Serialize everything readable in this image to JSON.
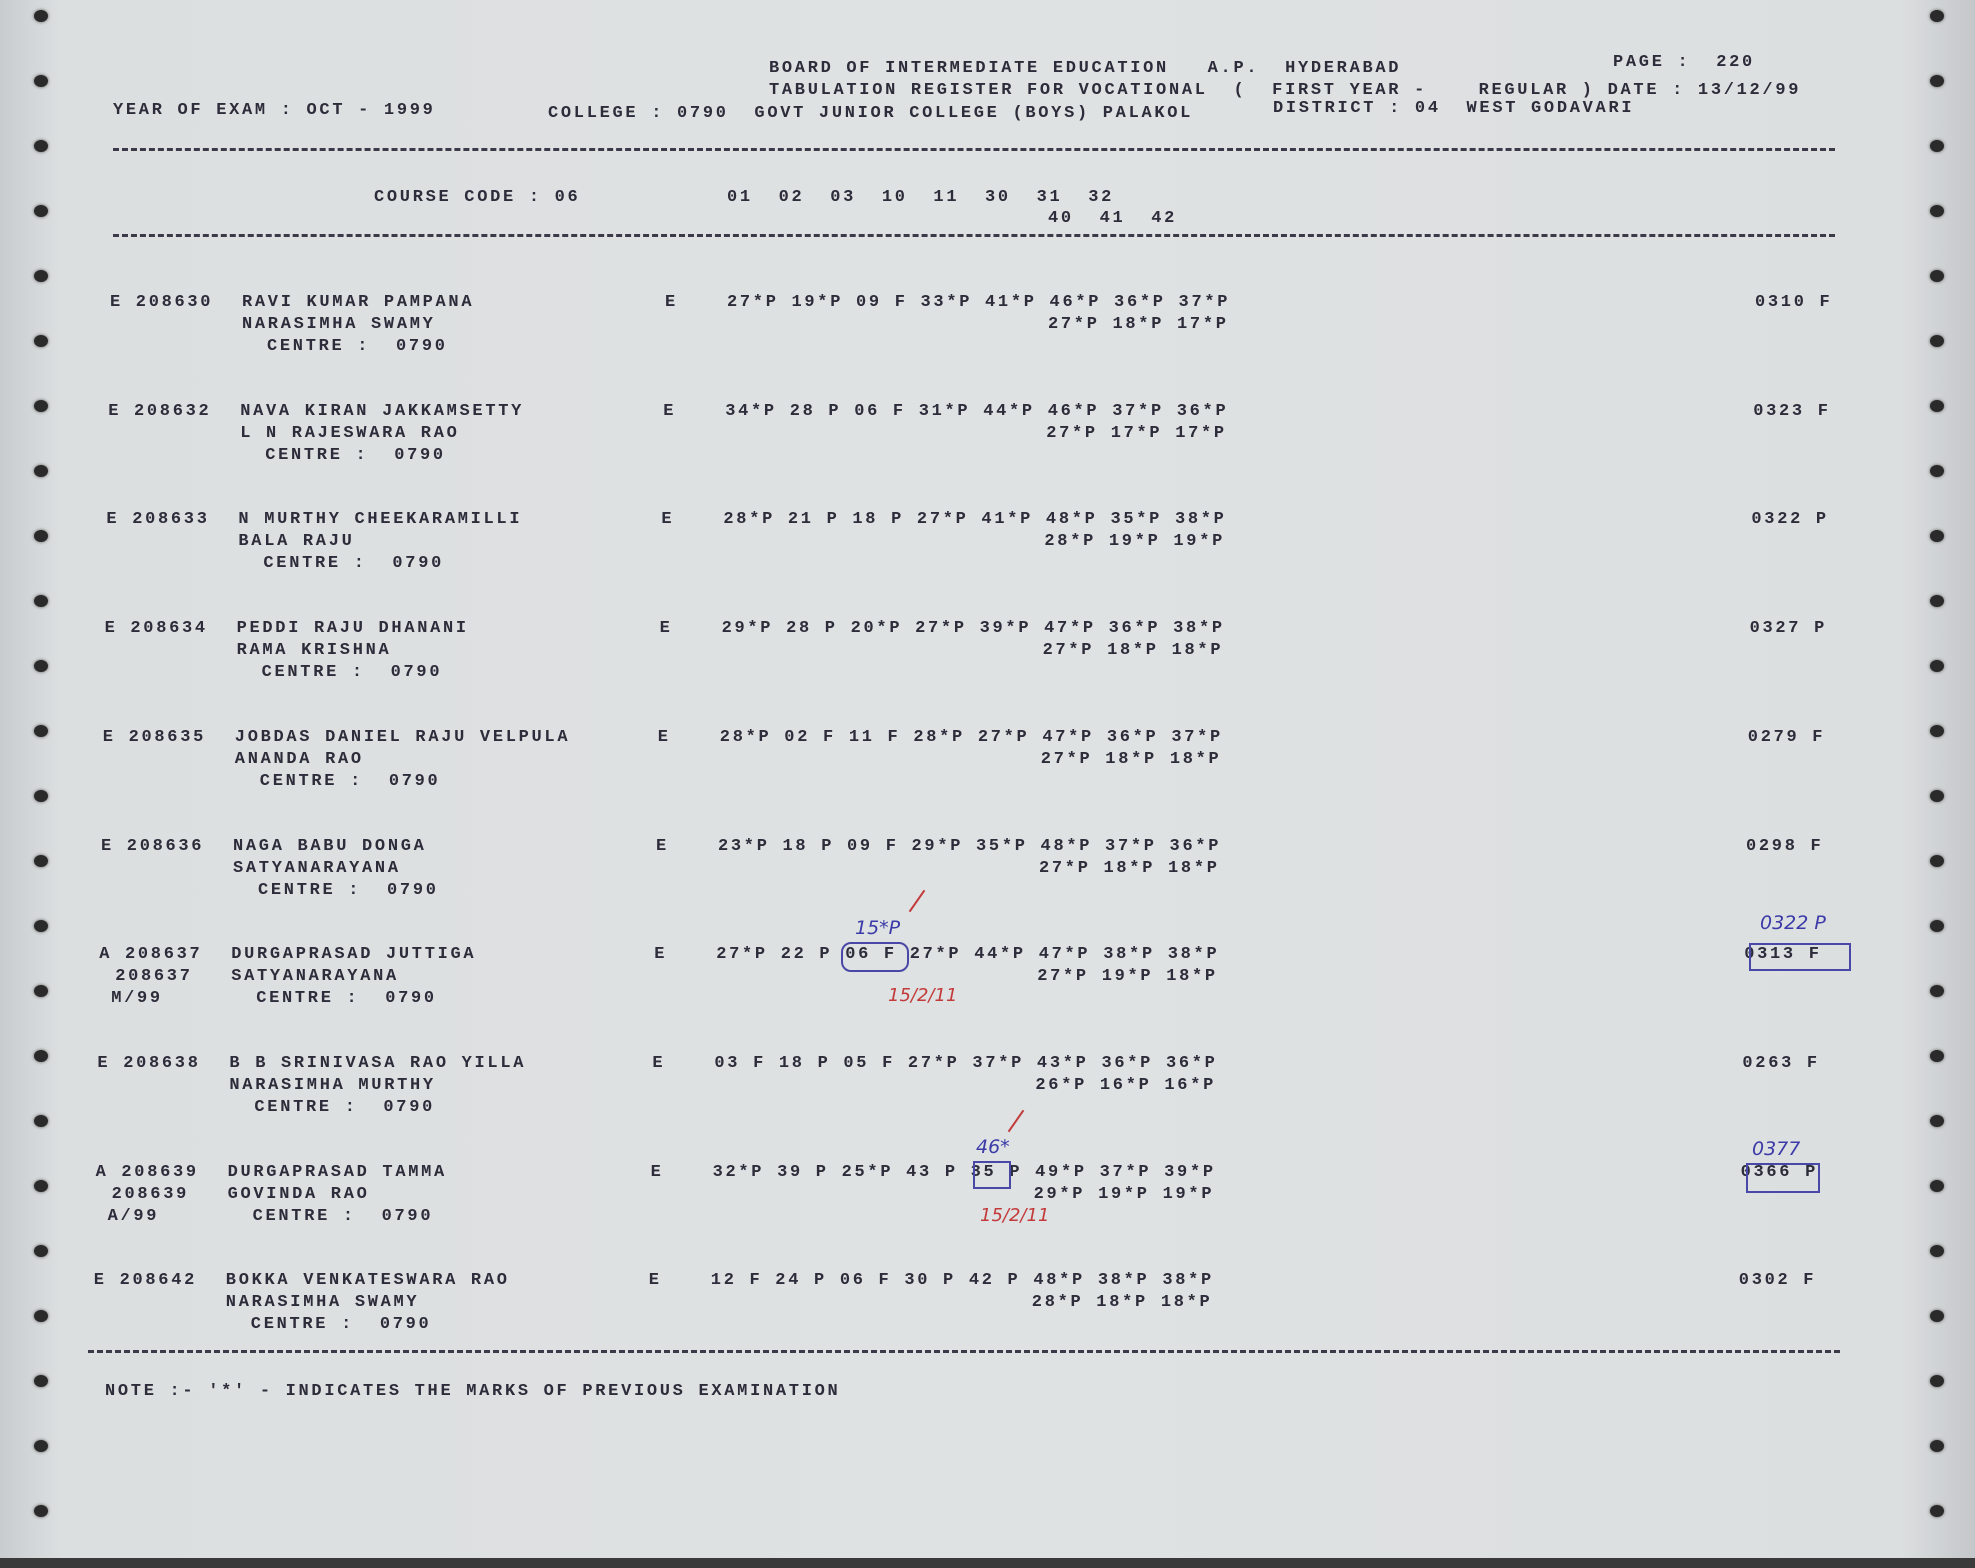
{
  "header": {
    "board": "BOARD OF INTERMEDIATE EDUCATION   A.P.  HYDERABAD",
    "page": "PAGE :  220",
    "register": "TABULATION REGISTER FOR VOCATIONAL  (  FIRST YEAR -    REGULAR ) DATE : 13/12/99",
    "year_of_exam": "YEAR OF EXAM : OCT - 1999",
    "college": "COLLEGE : 0790  GOVT JUNIOR COLLEGE (BOYS) PALAKOL",
    "district": "DISTRICT : 04  WEST GODAVARI",
    "course_code": "COURSE CODE : 06",
    "subject_codes_1": "01  02  03  10  11  30  31  32",
    "subject_codes_2": "40  41  42"
  },
  "records": [
    {
      "id": "E 208630",
      "id2": "",
      "id3": "",
      "name": "RAVI KUMAR PAMPANA",
      "parent": "NARASIMHA SWAMY",
      "centre": "CENTRE :  0790",
      "medium": "E",
      "marks1": "27*P 19*P 09 F 33*P 41*P 46*P 36*P 37*P",
      "marks2": "27*P 18*P 17*P",
      "total": "0310 F"
    },
    {
      "id": "E 208632",
      "id2": "",
      "id3": "",
      "name": "NAVA KIRAN JAKKAMSETTY",
      "parent": "L N RAJESWARA RAO",
      "centre": "CENTRE :  0790",
      "medium": "E",
      "marks1": "34*P 28 P 06 F 31*P 44*P 46*P 37*P 36*P",
      "marks2": "27*P 17*P 17*P",
      "total": "0323 F"
    },
    {
      "id": "E 208633",
      "id2": "",
      "id3": "",
      "name": "N MURTHY CHEEKARAMILLI",
      "parent": "BALA RAJU",
      "centre": "CENTRE :  0790",
      "medium": "E",
      "marks1": "28*P 21 P 18 P 27*P 41*P 48*P 35*P 38*P",
      "marks2": "28*P 19*P 19*P",
      "total": "0322 P"
    },
    {
      "id": "E 208634",
      "id2": "",
      "id3": "",
      "name": "PEDDI RAJU DHANANI",
      "parent": "RAMA KRISHNA",
      "centre": "CENTRE :  0790",
      "medium": "E",
      "marks1": "29*P 28 P 20*P 27*P 39*P 47*P 36*P 38*P",
      "marks2": "27*P 18*P 18*P",
      "total": "0327 P"
    },
    {
      "id": "E 208635",
      "id2": "",
      "id3": "",
      "name": "JOBDAS DANIEL RAJU VELPULA",
      "parent": "ANANDA RAO",
      "centre": "CENTRE :  0790",
      "medium": "E",
      "marks1": "28*P 02 F 11 F 28*P 27*P 47*P 36*P 37*P",
      "marks2": "27*P 18*P 18*P",
      "total": "0279 F"
    },
    {
      "id": "E 208636",
      "id2": "",
      "id3": "",
      "name": "NAGA BABU DONGA",
      "parent": "SATYANARAYANA",
      "centre": "CENTRE :  0790",
      "medium": "E",
      "marks1": "23*P 18 P 09 F 29*P 35*P 48*P 37*P 36*P",
      "marks2": "27*P 18*P 18*P",
      "total": "0298 F"
    },
    {
      "id": "A 208637",
      "id2": "208637",
      "id3": "M/99",
      "name": "DURGAPRASAD JUTTIGA",
      "parent": "SATYANARAYANA",
      "centre": "CENTRE :  0790",
      "medium": "E",
      "marks1": "27*P 22 P 06 F 27*P 44*P 47*P 38*P 38*P",
      "marks2": "27*P 19*P 18*P",
      "total": "0313 F"
    },
    {
      "id": "E 208638",
      "id2": "",
      "id3": "",
      "name": "B B SRINIVASA RAO YILLA",
      "parent": "NARASIMHA MURTHY",
      "centre": "CENTRE :  0790",
      "medium": "E",
      "marks1": "03 F 18 P 05 F 27*P 37*P 43*P 36*P 36*P",
      "marks2": "26*P 16*P 16*P",
      "total": "0263 F"
    },
    {
      "id": "A 208639",
      "id2": "208639",
      "id3": "A/99",
      "name": "DURGAPRASAD TAMMA",
      "parent": "GOVINDA RAO",
      "centre": "CENTRE :  0790",
      "medium": "E",
      "marks1": "32*P 39 P 25*P 43 P 35 P 49*P 37*P 39*P",
      "marks2": "29*P 19*P 19*P",
      "total": "0366 P"
    },
    {
      "id": "E 208642",
      "id2": "",
      "id3": "",
      "name": "BOKKA VENKATESWARA RAO",
      "parent": "NARASIMHA SWAMY",
      "centre": "CENTRE :  0790",
      "medium": "E",
      "marks1": "12 F 24 P 06 F 30 P 42 P 48*P 38*P 38*P",
      "marks2": "28*P 18*P 18*P",
      "total": "0302 F"
    }
  ],
  "annotations": {
    "rec7_mark": "15*P",
    "rec7_initials": "15/2/11",
    "rec7_total": "0322 P",
    "rec9_mark": "46*",
    "rec9_initials": "15/2/11",
    "rec9_total": "0377"
  },
  "note": "NOTE :- '*' - INDICATES THE MARKS OF PREVIOUS EXAMINATION",
  "colors": {
    "paper": "#dfe2e3",
    "ink": "#2c2c3a",
    "pen_blue": "#3b3aa8",
    "pen_red": "#c23a3a"
  }
}
